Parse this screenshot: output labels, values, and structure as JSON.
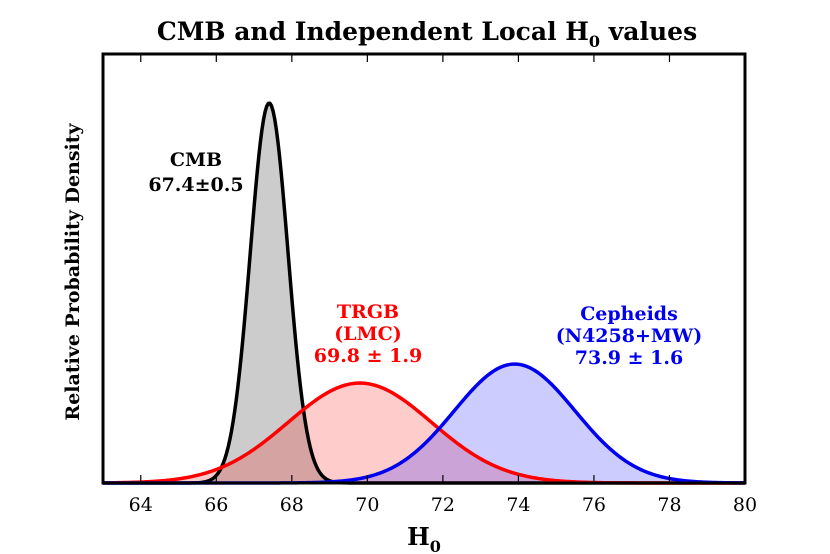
{
  "chart_data": {
    "type": "line",
    "title": "CMB and Independent Local H",
    "title_sub": "0",
    "title_tail": " values",
    "xlabel": "H",
    "xlabel_sub": "0",
    "ylabel": "Relative Probability Density",
    "xlim": [
      63,
      80
    ],
    "xticks": [
      "64",
      "66",
      "68",
      "70",
      "72",
      "74",
      "76",
      "78",
      "80"
    ],
    "grid": false,
    "series": [
      {
        "name": "CMB",
        "mean": 67.4,
        "sigma": 0.5,
        "peak": 1.0,
        "line_color": "#000000",
        "fill_color": "#808080",
        "fill_opacity": 0.4,
        "annotation": [
          "CMB",
          "67.4±0.5"
        ]
      },
      {
        "name": "TRGB",
        "mean": 69.8,
        "sigma": 1.9,
        "peak": 0.263,
        "line_color": "#ff0000",
        "fill_color": "#ff0000",
        "fill_opacity": 0.2,
        "annotation": [
          "TRGB",
          "(LMC)",
          "69.8 ± 1.9"
        ]
      },
      {
        "name": "Cepheids",
        "mean": 73.9,
        "sigma": 1.6,
        "peak": 0.313,
        "line_color": "#0000ee",
        "fill_color": "#0000ff",
        "fill_opacity": 0.2,
        "annotation": [
          "Cepheids",
          "(N4258+MW)",
          "73.9 ± 1.6"
        ]
      }
    ]
  }
}
